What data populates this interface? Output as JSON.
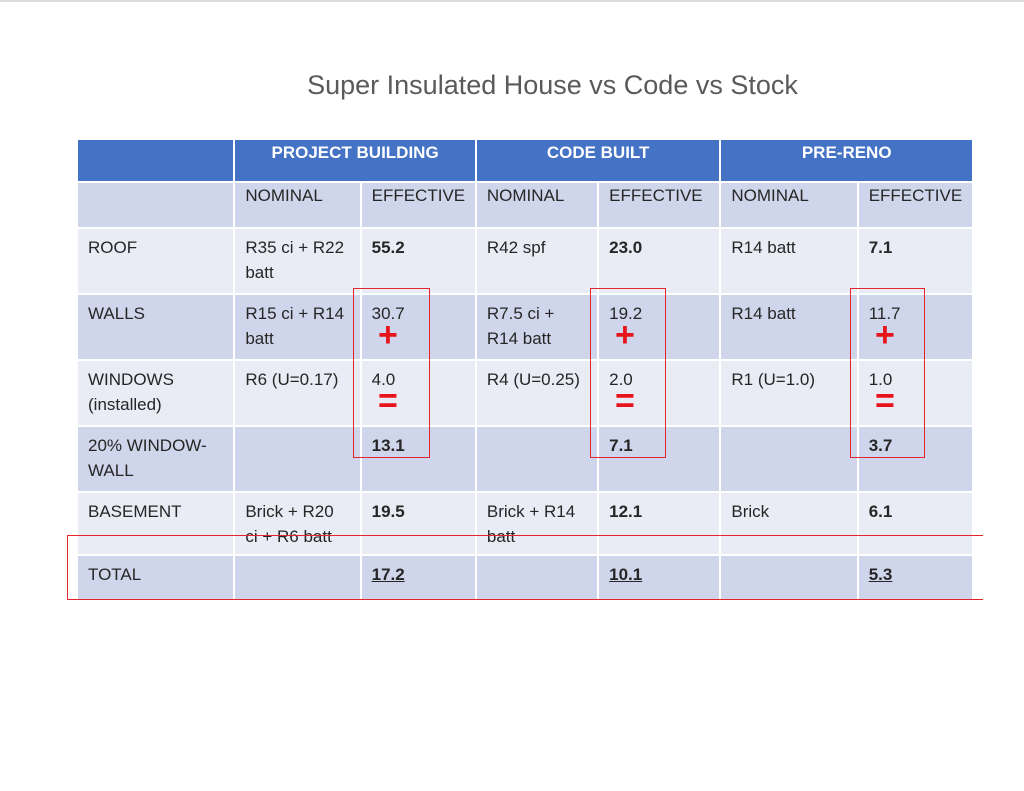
{
  "title": "Super Insulated House vs Code vs Stock",
  "groups": [
    "PROJECT BUILDING",
    "CODE BUILT",
    "PRE-RENO"
  ],
  "subheaders": [
    "NOMINAL",
    "EFFECTIVE",
    "NOMINAL",
    "EFFECTIVE",
    "NOMINAL",
    "EFFECTIVE"
  ],
  "rows": [
    {
      "label": "ROOF",
      "cells": [
        "R35 ci + R22 batt",
        "55.2",
        "R42 spf",
        "23.0",
        "R14 batt",
        "7.1"
      ]
    },
    {
      "label": "WALLS",
      "cells": [
        "R15 ci + R14 batt",
        "30.7",
        "R7.5 ci + R14 batt",
        "19.2",
        "R14 batt",
        "11.7"
      ]
    },
    {
      "label": "WINDOWS (installed)",
      "cells": [
        "R6 (U=0.17)",
        "4.0",
        "R4 (U=0.25)",
        "2.0",
        "R1 (U=1.0)",
        "1.0"
      ]
    },
    {
      "label": "20% WINDOW-WALL",
      "cells": [
        "",
        "13.1",
        "",
        "7.1",
        "",
        "3.7"
      ]
    },
    {
      "label": "BASEMENT",
      "cells": [
        "Brick + R20 ci + R6 batt",
        "19.5",
        "Brick + R14 batt",
        "12.1",
        "Brick",
        "6.1"
      ]
    },
    {
      "label": "TOTAL",
      "cells": [
        "",
        "17.2",
        "",
        "10.1",
        "",
        "5.3"
      ]
    }
  ],
  "operators": {
    "plus": "+",
    "equals": "="
  },
  "colors": {
    "header_blue": "#4472c4",
    "band_dark": "#cfd5ea",
    "band_light": "#e9ebf5",
    "highlight_red": "#e3262b"
  }
}
